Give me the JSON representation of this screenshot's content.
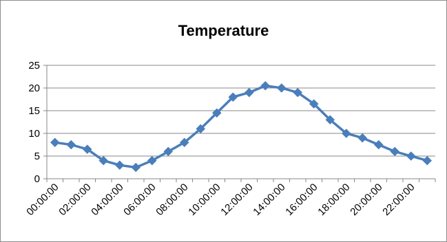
{
  "chart_data": {
    "type": "line",
    "title": "Temperature",
    "xlabel": "",
    "ylabel": "",
    "ylim": [
      0,
      25
    ],
    "yticks": [
      "0",
      "5",
      "10",
      "15",
      "20",
      "25"
    ],
    "x": [
      "00:00:00",
      "01:00:00",
      "02:00:00",
      "03:00:00",
      "04:00:00",
      "05:00:00",
      "06:00:00",
      "07:00:00",
      "08:00:00",
      "09:00:00",
      "10:00:00",
      "11:00:00",
      "12:00:00",
      "13:00:00",
      "14:00:00",
      "15:00:00",
      "16:00:00",
      "17:00:00",
      "18:00:00",
      "19:00:00",
      "20:00:00",
      "21:00:00",
      "22:00:00",
      "23:00:00"
    ],
    "xticks": [
      "00:00:00",
      "02:00:00",
      "04:00:00",
      "06:00:00",
      "08:00:00",
      "10:00:00",
      "12:00:00",
      "14:00:00",
      "16:00:00",
      "18:00:00",
      "20:00:00",
      "22:00:00"
    ],
    "values": [
      8,
      7.5,
      6.5,
      4,
      3,
      2.5,
      4,
      6,
      8,
      11,
      14.5,
      18,
      19,
      20.5,
      20,
      19,
      16.5,
      13,
      10,
      9,
      7.5,
      6,
      5,
      4
    ],
    "grid": true,
    "legend": "none",
    "color": "#4a7ebb"
  }
}
